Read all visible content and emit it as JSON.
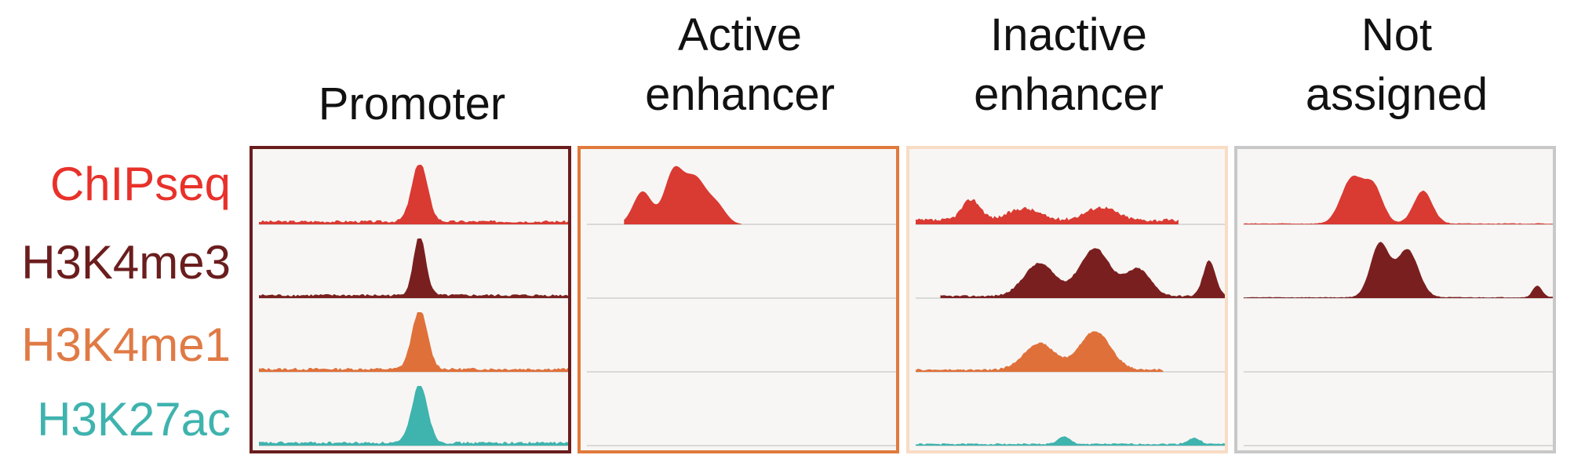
{
  "columns": [
    {
      "title_lines": [
        "Promoter"
      ],
      "border_color": "#6b1d1d"
    },
    {
      "title_lines": [
        "Active",
        "enhancer"
      ],
      "border_color": "#e07a3c"
    },
    {
      "title_lines": [
        "Inactive",
        "enhancer"
      ],
      "border_color": "#f8dcc4"
    },
    {
      "title_lines": [
        "Not",
        "assigned"
      ],
      "border_color": "#c8c8c8"
    }
  ],
  "rows": [
    {
      "label": "ChIPseq",
      "color": "#e8312a",
      "fill": "#d93a32"
    },
    {
      "label": "H3K4me3",
      "color": "#6b1d1d",
      "fill": "#7a1f1f"
    },
    {
      "label": "H3K4me1",
      "color": "#e07a45",
      "fill": "#e0703a"
    },
    {
      "label": "H3K27ac",
      "color": "#3fb3ae",
      "fill": "#3fb3ae"
    }
  ],
  "tracks": [
    [
      {
        "peaks": [
          [
            0.52,
            0.025,
            1.0
          ]
        ],
        "noise": 0.07
      },
      {
        "peaks": [
          [
            0.18,
            0.03,
            0.55
          ],
          [
            0.28,
            0.03,
            0.85
          ],
          [
            0.35,
            0.035,
            0.75
          ],
          [
            0.42,
            0.03,
            0.3
          ]
        ],
        "noise": 0.0,
        "start": 0.12,
        "end": 0.5
      },
      {
        "peaks": [
          [
            0.18,
            0.03,
            0.35
          ],
          [
            0.35,
            0.05,
            0.2
          ],
          [
            0.6,
            0.05,
            0.22
          ]
        ],
        "noise": 0.1,
        "end": 0.85
      },
      {
        "peaks": [
          [
            0.35,
            0.035,
            0.75
          ],
          [
            0.42,
            0.03,
            0.6
          ],
          [
            0.58,
            0.03,
            0.55
          ]
        ],
        "noise": 0.02
      }
    ],
    [
      {
        "peaks": [
          [
            0.52,
            0.02,
            1.0
          ]
        ],
        "noise": 0.07
      },
      {
        "peaks": [],
        "noise": 0.0
      },
      {
        "peaks": [
          [
            0.4,
            0.05,
            0.55
          ],
          [
            0.58,
            0.05,
            0.8
          ],
          [
            0.72,
            0.04,
            0.45
          ],
          [
            0.95,
            0.02,
            0.6
          ]
        ],
        "noise": 0.05,
        "start": 0.08
      },
      {
        "peaks": [
          [
            0.44,
            0.03,
            0.9
          ],
          [
            0.53,
            0.035,
            0.8
          ],
          [
            0.95,
            0.015,
            0.2
          ]
        ],
        "noise": 0.02
      }
    ],
    [
      {
        "peaks": [
          [
            0.52,
            0.025,
            1.0
          ]
        ],
        "noise": 0.07
      },
      {
        "peaks": [],
        "noise": 0.0
      },
      {
        "peaks": [
          [
            0.4,
            0.05,
            0.45
          ],
          [
            0.58,
            0.05,
            0.65
          ]
        ],
        "noise": 0.05,
        "end": 0.8
      },
      {
        "peaks": [],
        "noise": 0.0
      }
    ],
    [
      {
        "peaks": [
          [
            0.52,
            0.025,
            1.0
          ]
        ],
        "noise": 0.07
      },
      {
        "peaks": [],
        "noise": 0.0
      },
      {
        "peaks": [
          [
            0.48,
            0.02,
            0.12
          ],
          [
            0.9,
            0.02,
            0.1
          ]
        ],
        "noise": 0.04
      },
      {
        "peaks": [],
        "noise": 0.0
      }
    ]
  ]
}
